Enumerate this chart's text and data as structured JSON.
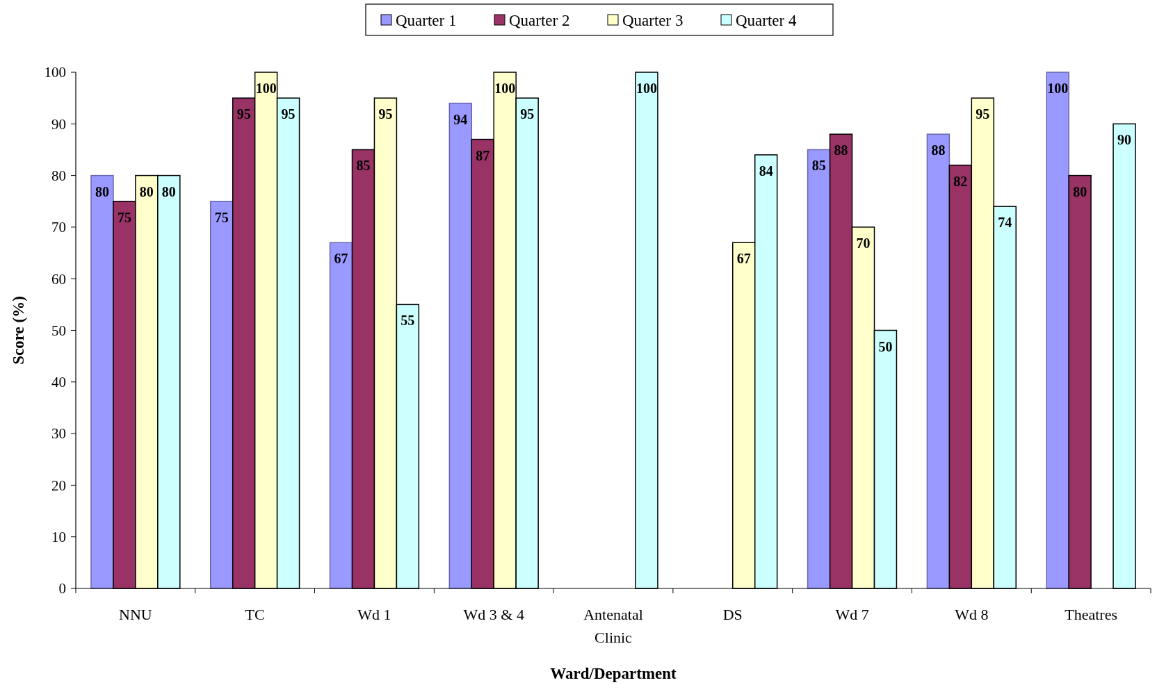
{
  "chart_data": {
    "type": "bar",
    "xlabel": "Ward/Department",
    "ylabel": "Score (%)",
    "categories": [
      "NNU",
      "TC",
      "Wd 1",
      "Wd 3 & 4",
      "Antenatal Clinic",
      "DS",
      "Wd 7",
      "Wd 8",
      "Theatres"
    ],
    "series": [
      {
        "name": "Quarter 1",
        "color": "#9999ff",
        "values": [
          80,
          75,
          67,
          94,
          null,
          null,
          85,
          88,
          100
        ]
      },
      {
        "name": "Quarter 2",
        "color": "#993366",
        "values": [
          75,
          95,
          85,
          87,
          null,
          null,
          88,
          82,
          80
        ]
      },
      {
        "name": "Quarter 3",
        "color": "#ffffcc",
        "values": [
          80,
          100,
          95,
          100,
          null,
          67,
          70,
          95,
          null
        ]
      },
      {
        "name": "Quarter 4",
        "color": "#ccffff",
        "values": [
          80,
          95,
          55,
          95,
          100,
          84,
          50,
          74,
          90
        ]
      }
    ],
    "ylim": [
      0,
      100
    ],
    "yticks": [
      0,
      10,
      20,
      30,
      40,
      50,
      60,
      70,
      80,
      90,
      100
    ],
    "data_labels": true,
    "legend": "top",
    "grid": false
  }
}
